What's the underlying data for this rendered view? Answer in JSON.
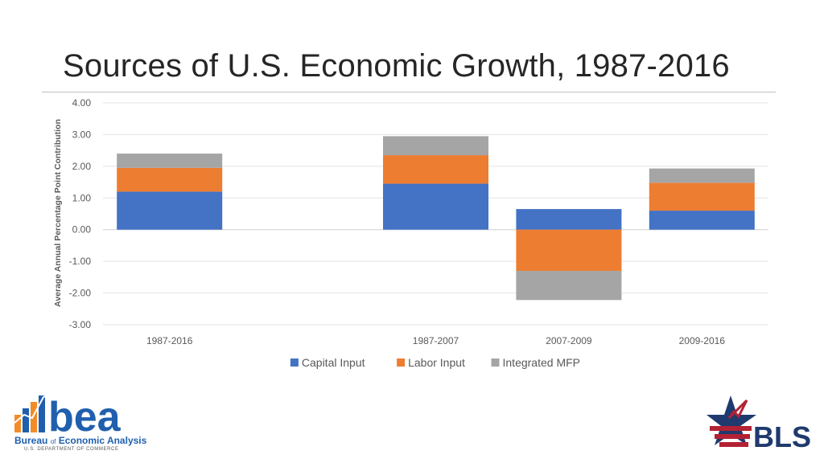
{
  "page": {
    "title": "Sources of U.S. Economic Growth, 1987-2016"
  },
  "chart_data": {
    "type": "bar",
    "stacked": true,
    "title": "Sources of U.S. Economic Growth, 1987-2016",
    "ylabel": "Average Annual Percentage Point Contribution",
    "xlabel": "",
    "ylim": [
      -3,
      4
    ],
    "yticks": [
      4,
      3,
      2,
      1,
      0,
      -1,
      -2,
      -3
    ],
    "ytick_labels": [
      "4.00",
      "3.00",
      "2.00",
      "1.00",
      "0.00",
      "-1.00",
      "-2.00",
      "-3.00"
    ],
    "grid": true,
    "legend_position": "bottom",
    "slots": [
      "1987-2016",
      "",
      "1987-2007",
      "2007-2009",
      "2009-2016"
    ],
    "categories": [
      "1987-2016",
      "1987-2007",
      "2007-2009",
      "2009-2016"
    ],
    "series": [
      {
        "name": "Capital Input",
        "color": "#4472c4",
        "values": [
          1.2,
          1.45,
          0.65,
          0.6
        ]
      },
      {
        "name": "Labor Input",
        "color": "#ed7d31",
        "values": [
          0.75,
          0.9,
          -1.3,
          0.88
        ]
      },
      {
        "name": "Integrated MFP",
        "color": "#a5a5a5",
        "values": [
          0.45,
          0.6,
          -0.92,
          0.45
        ]
      }
    ]
  },
  "logos": {
    "bea_mark": "bea",
    "bea_name_part1": "Bureau",
    "bea_name_of": "of",
    "bea_name_part2": "Economic Analysis",
    "bea_dept": "U.S. DEPARTMENT OF COMMERCE",
    "bls_mark": "BLS",
    "bea_color": "#1f5fae",
    "bls_red": "#b22234",
    "bls_blue": "#1f3a6e"
  }
}
